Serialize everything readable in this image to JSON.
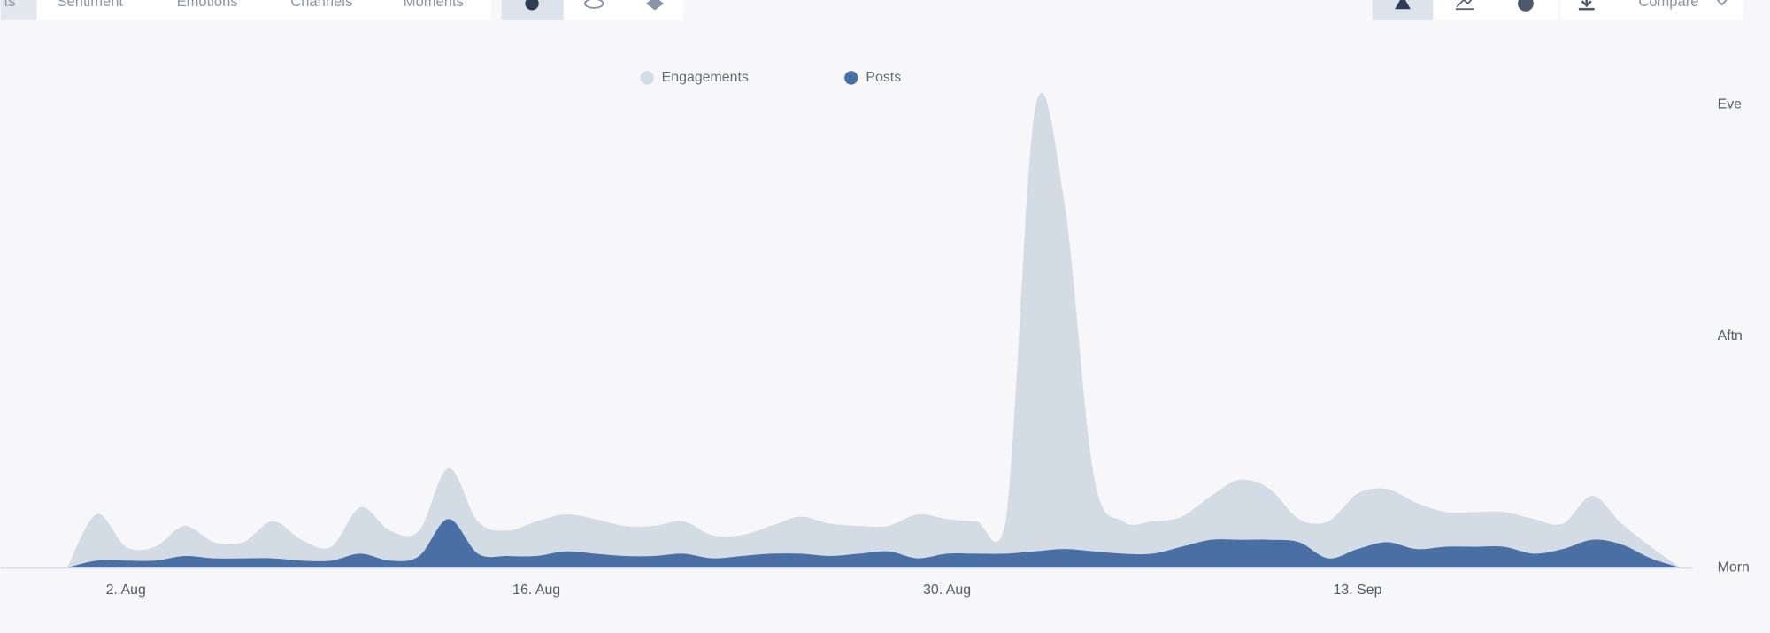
{
  "toolbar": {
    "tabs": [
      "ts",
      "Sentiment",
      "Emotions",
      "Channels",
      "Moments"
    ],
    "compare": "Compare"
  },
  "chart_data": {
    "type": "area",
    "categories": [
      null,
      null,
      "2. Aug",
      null,
      null,
      null,
      null,
      null,
      null,
      null,
      null,
      null,
      null,
      null,
      null,
      null,
      "16. Aug",
      null,
      null,
      null,
      null,
      null,
      null,
      null,
      null,
      null,
      null,
      null,
      null,
      null,
      "30. Aug",
      null,
      null,
      null,
      null,
      null,
      null,
      null,
      null,
      null,
      null,
      null,
      null,
      null,
      "13. Sep",
      null,
      null,
      null,
      null,
      null,
      null,
      null,
      null,
      null,
      null,
      null
    ],
    "series": [
      {
        "name": "Engagements",
        "color": "#d3dce5",
        "values": [
          0,
          0.23,
          0.09,
          0.09,
          0.18,
          0.11,
          0.11,
          0.2,
          0.12,
          0.09,
          0.26,
          0.16,
          0.16,
          0.43,
          0.2,
          0.16,
          0.2,
          0.23,
          0.21,
          0.18,
          0.18,
          0.2,
          0.14,
          0.14,
          0.18,
          0.22,
          0.19,
          0.18,
          0.18,
          0.23,
          0.21,
          0.2,
          0.2,
          1.98,
          1.58,
          0.4,
          0.2,
          0.2,
          0.22,
          0.31,
          0.38,
          0.34,
          0.21,
          0.2,
          0.32,
          0.34,
          0.28,
          0.24,
          0.24,
          0.24,
          0.21,
          0.19,
          0.31,
          0.19,
          0.09,
          0
        ]
      },
      {
        "name": "Posts",
        "color": "#4a6fa5",
        "values": [
          0,
          0.03,
          0.03,
          0.03,
          0.05,
          0.04,
          0.04,
          0.04,
          0.03,
          0.03,
          0.06,
          0.03,
          0.05,
          0.21,
          0.06,
          0.05,
          0.05,
          0.07,
          0.06,
          0.05,
          0.05,
          0.06,
          0.04,
          0.05,
          0.06,
          0.06,
          0.05,
          0.06,
          0.07,
          0.04,
          0.06,
          0.06,
          0.06,
          0.07,
          0.08,
          0.07,
          0.06,
          0.06,
          0.09,
          0.12,
          0.12,
          0.12,
          0.11,
          0.04,
          0.08,
          0.11,
          0.08,
          0.09,
          0.09,
          0.09,
          0.06,
          0.08,
          0.12,
          0.1,
          0.04,
          0
        ]
      }
    ],
    "ylim": [
      0,
      2
    ],
    "yticks": [
      {
        "value": 0,
        "label": "Morn"
      },
      {
        "value": 1,
        "label": "Aftn"
      },
      {
        "value": 2,
        "label": "Eve"
      }
    ],
    "grid": false
  }
}
